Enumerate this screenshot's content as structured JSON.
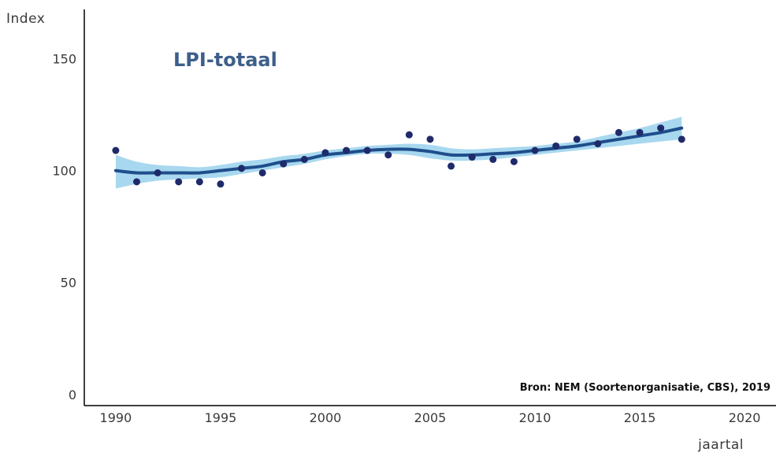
{
  "chart_data": {
    "type": "scatter",
    "title": "LPI-totaal",
    "xlabel": "jaartal",
    "ylabel": "Index",
    "source": "Bron: NEM (Soortenorganisatie, CBS), 2019",
    "xlim": [
      1988.5,
      2021.5
    ],
    "ylim": [
      -5,
      172
    ],
    "xticks": [
      1990,
      1995,
      2000,
      2005,
      2010,
      2015,
      2020
    ],
    "yticks": [
      0,
      50,
      100,
      150
    ],
    "grid": false,
    "colors": {
      "points": "#1f2a6b",
      "trend": "#1f4e8c",
      "band": "#a8d8ef",
      "title": "#3d5f8a"
    },
    "series": [
      {
        "type": "scatter",
        "x": [
          1990,
          1991,
          1992,
          1993,
          1994,
          1995,
          1996,
          1997,
          1998,
          1999,
          2000,
          2001,
          2002,
          2003,
          2004,
          2005,
          2006,
          2007,
          2008,
          2009,
          2010,
          2011,
          2012,
          2013,
          2014,
          2015,
          2016,
          2017
        ],
        "y": [
          109,
          95,
          99,
          95,
          95,
          94,
          101,
          99,
          103,
          105,
          108,
          109,
          109,
          107,
          116,
          114,
          102,
          106,
          105,
          104,
          109,
          111,
          114,
          112,
          117,
          117,
          119,
          114
        ]
      },
      {
        "type": "line",
        "x": [
          1990,
          1991,
          1992,
          1993,
          1994,
          1995,
          1996,
          1997,
          1998,
          1999,
          2000,
          2001,
          2002,
          2003,
          2004,
          2005,
          2006,
          2007,
          2008,
          2009,
          2010,
          2011,
          2012,
          2013,
          2014,
          2015,
          2016,
          2017
        ],
        "y": [
          100,
          99,
          99,
          99,
          99,
          100,
          101,
          102,
          104,
          105,
          107,
          108,
          109,
          109.5,
          109.5,
          108.5,
          107,
          107,
          107.5,
          108,
          109,
          110,
          111,
          112.5,
          114,
          115.5,
          117,
          119
        ],
        "lower": [
          92,
          94,
          95.5,
          96,
          96.5,
          97,
          98.5,
          100,
          101.5,
          103,
          105,
          106.5,
          107.5,
          107.5,
          107,
          105.5,
          104.5,
          104.5,
          105,
          106,
          107,
          108,
          109,
          110,
          111,
          112,
          113,
          114
        ],
        "upper": [
          107,
          104,
          102.5,
          102,
          101.5,
          102.5,
          104,
          105,
          106.5,
          107.5,
          109,
          110,
          111,
          111.5,
          112,
          111.5,
          110,
          109.5,
          110,
          110.5,
          111,
          112,
          113,
          115,
          117,
          119,
          121.5,
          124
        ]
      }
    ]
  }
}
